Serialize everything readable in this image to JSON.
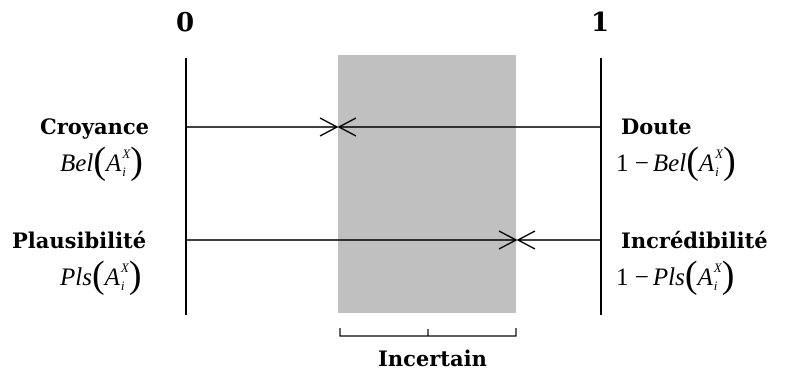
{
  "axis": {
    "left_tick": "0",
    "right_tick": "1"
  },
  "rows": [
    {
      "left_label": "Croyance",
      "left_formula": {
        "prefix": "",
        "fn": "Bel",
        "var": "A",
        "sub": "i",
        "sup": "X"
      },
      "right_label": "Doute",
      "right_formula": {
        "prefix": "1 −",
        "fn": "Bel",
        "var": "A",
        "sub": "i",
        "sup": "X"
      }
    },
    {
      "left_label": "Plausibilité",
      "left_formula": {
        "prefix": "",
        "fn": "Pls",
        "var": "A",
        "sub": "i",
        "sup": "X"
      },
      "right_label": "Incrédibilité",
      "right_formula": {
        "prefix": "1 −",
        "fn": "Pls",
        "var": "A",
        "sub": "i",
        "sup": "X"
      }
    }
  ],
  "uncertain_region": {
    "label": "Incertain",
    "fill_color": "#c0c0c0"
  }
}
